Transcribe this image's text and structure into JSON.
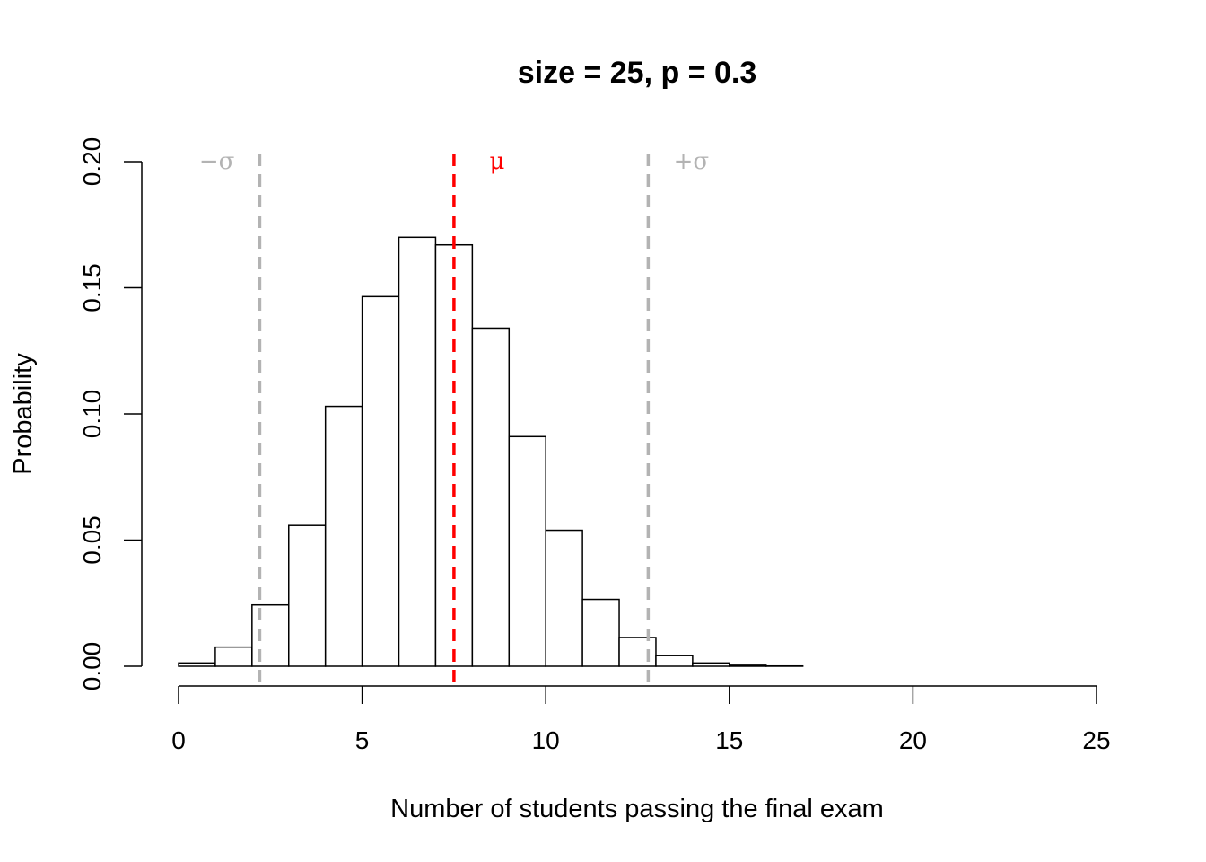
{
  "chart_data": {
    "type": "bar",
    "title": "size = 25, p = 0.3",
    "xlabel": "Number of students passing the final exam",
    "ylabel": "Probability",
    "xlim": [
      0,
      25
    ],
    "ylim": [
      0,
      0.2
    ],
    "x_ticks": [
      0,
      5,
      10,
      15,
      20,
      25
    ],
    "x_tick_labels": [
      "0",
      "5",
      "10",
      "15",
      "20",
      "25"
    ],
    "y_ticks": [
      0,
      0.05,
      0.1,
      0.15,
      0.2
    ],
    "y_tick_labels": [
      "0.00",
      "0.05",
      "0.10",
      "0.15",
      "0.20"
    ],
    "bins": [
      {
        "start": 0,
        "end": 1,
        "value": 0.0013
      },
      {
        "start": 1,
        "end": 2,
        "value": 0.0076
      },
      {
        "start": 2,
        "end": 3,
        "value": 0.0243
      },
      {
        "start": 3,
        "end": 4,
        "value": 0.0558
      },
      {
        "start": 4,
        "end": 5,
        "value": 0.103
      },
      {
        "start": 5,
        "end": 6,
        "value": 0.1465
      },
      {
        "start": 6,
        "end": 7,
        "value": 0.17
      },
      {
        "start": 7,
        "end": 8,
        "value": 0.167
      },
      {
        "start": 8,
        "end": 9,
        "value": 0.134
      },
      {
        "start": 9,
        "end": 10,
        "value": 0.091
      },
      {
        "start": 10,
        "end": 11,
        "value": 0.0539
      },
      {
        "start": 11,
        "end": 12,
        "value": 0.0265
      },
      {
        "start": 12,
        "end": 13,
        "value": 0.0114
      },
      {
        "start": 13,
        "end": 14,
        "value": 0.0042
      },
      {
        "start": 14,
        "end": 15,
        "value": 0.0013
      },
      {
        "start": 15,
        "end": 16,
        "value": 0.0004
      },
      {
        "start": 16,
        "end": 17,
        "value": 0.0001
      },
      {
        "start": 17,
        "end": 18,
        "value": 0.0
      },
      {
        "start": 18,
        "end": 19,
        "value": 0.0
      }
    ],
    "reference_lines": [
      {
        "name": "minus-sigma",
        "x": 2.21,
        "color": "#b3b3b3",
        "label": "−σ",
        "label_side": "left"
      },
      {
        "name": "mu",
        "x": 7.5,
        "color": "#ff0000",
        "label": "μ",
        "label_side": "right"
      },
      {
        "name": "plus-sigma",
        "x": 12.79,
        "color": "#b3b3b3",
        "label": "+σ",
        "label_side": "right"
      }
    ],
    "bar_fill": "#ffffff",
    "bar_stroke": "#000000"
  }
}
